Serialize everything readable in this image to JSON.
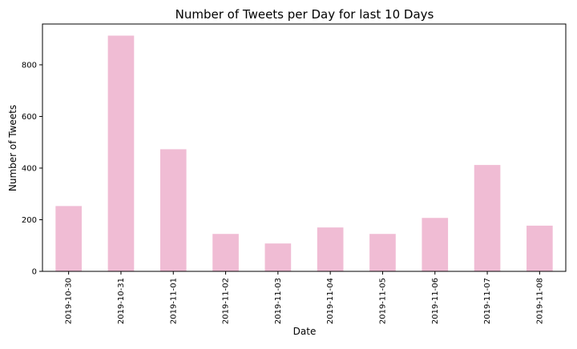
{
  "chart_data": {
    "type": "bar",
    "title": "Number of Tweets per Day for last 10 Days",
    "xlabel": "Date",
    "ylabel": "Number of Tweets",
    "categories": [
      "2019-10-30",
      "2019-10-31",
      "2019-11-01",
      "2019-11-02",
      "2019-11-03",
      "2019-11-04",
      "2019-11-05",
      "2019-11-06",
      "2019-11-07",
      "2019-11-08"
    ],
    "values": [
      253,
      913,
      473,
      145,
      108,
      170,
      145,
      207,
      412,
      177
    ],
    "ylim": [
      0,
      958
    ],
    "yticks": [
      0,
      200,
      400,
      600,
      800
    ],
    "grid": false,
    "legend": "none",
    "bar_color": "#F0BCD4"
  }
}
